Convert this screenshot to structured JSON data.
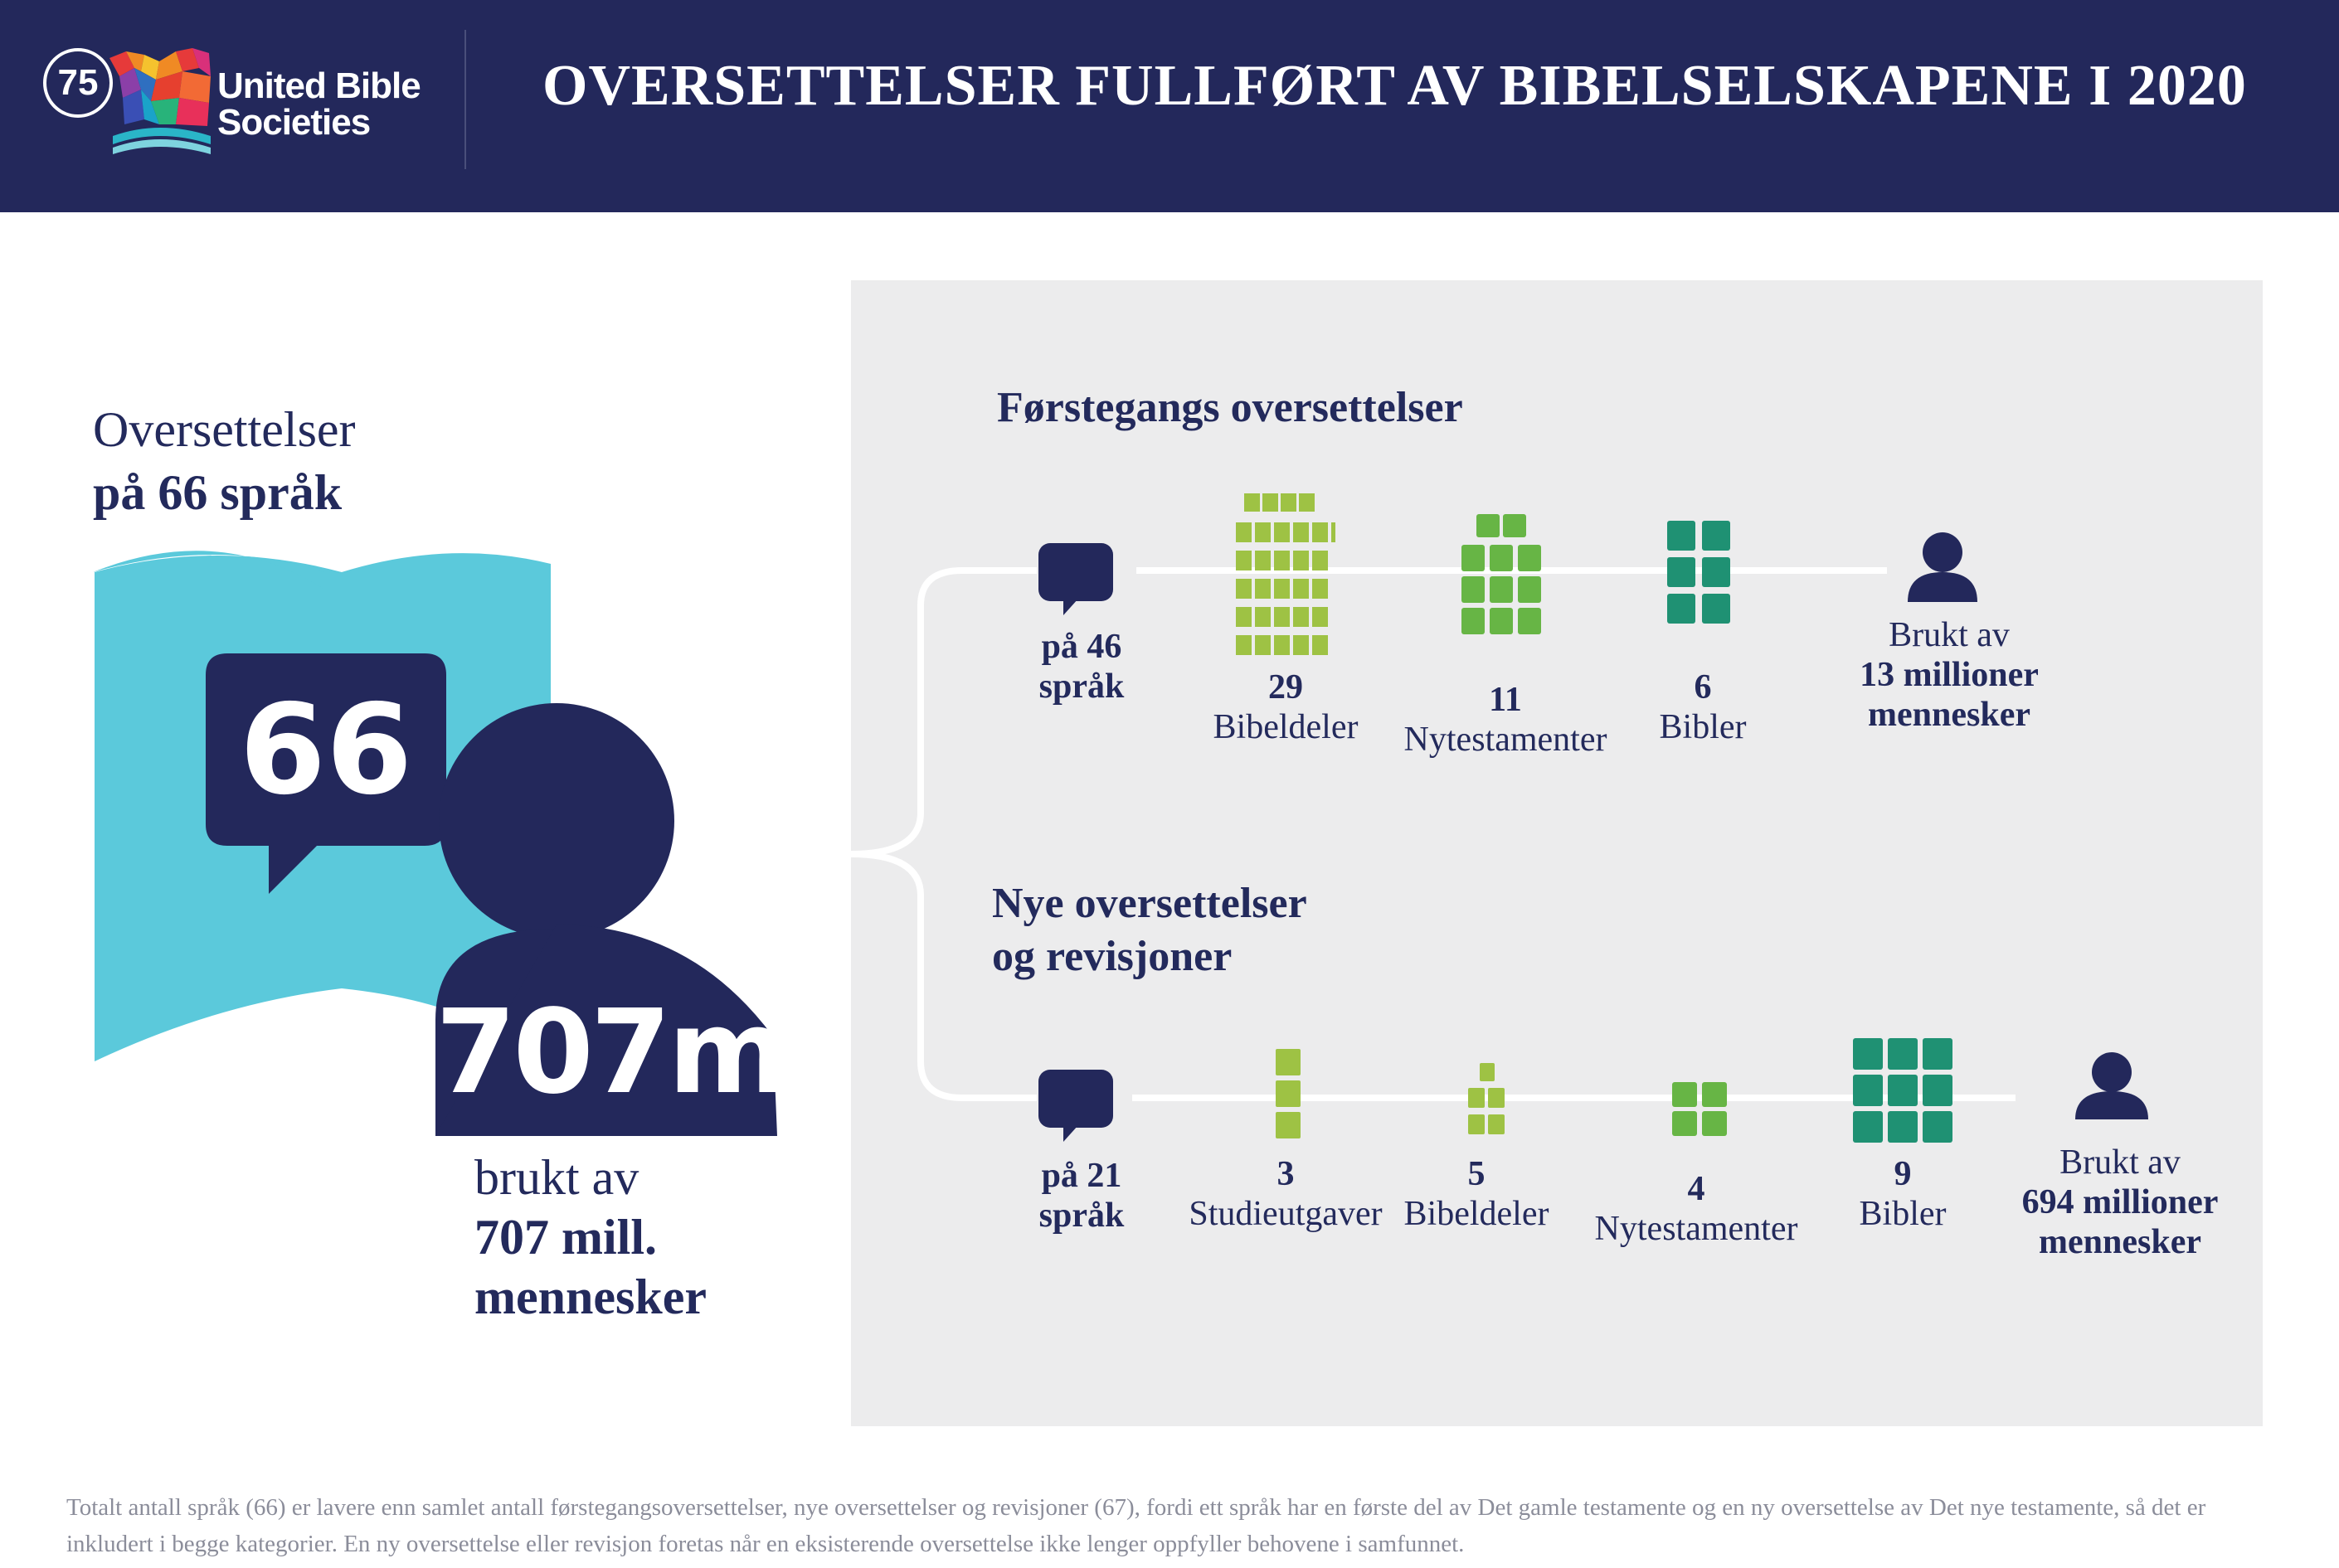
{
  "header": {
    "logo_badge": "75",
    "logo_line1": "United Bible",
    "logo_line2": "Societies",
    "title": "OVERSETTELSER FULLFØRT AV BIBELSELSKAPENE I 2020"
  },
  "summary": {
    "line1": "Oversettelser",
    "line2": "på 66 språk",
    "languages_stat": "66",
    "people_stat": "707m",
    "used_line1": "brukt av",
    "used_line2": "707 mill.",
    "used_line3": "mennesker"
  },
  "first_time": {
    "title": "Førstegangs oversettelser",
    "languages_line1": "på 46",
    "languages_line2": "språk",
    "items": [
      {
        "value": "29",
        "label": "Bibeldeler",
        "icon": "bible-portion-icon"
      },
      {
        "value": "11",
        "label": "Nytestamenter",
        "icon": "new-testament-icon"
      },
      {
        "value": "6",
        "label": "Bibler",
        "icon": "bible-icon"
      }
    ],
    "used_line1": "Brukt av",
    "used_line2": "13 millioner",
    "used_line3": "mennesker"
  },
  "new_revisions": {
    "title_line1": "Nye oversettelser",
    "title_line2": "og revisjoner",
    "languages_line1": "på 21",
    "languages_line2": "språk",
    "items": [
      {
        "value": "3",
        "label": "Studieutgaver",
        "icon": "study-edition-icon"
      },
      {
        "value": "5",
        "label": "Bibeldeler",
        "icon": "bible-portion-icon"
      },
      {
        "value": "4",
        "label": "Nytestamenter",
        "icon": "new-testament-icon"
      },
      {
        "value": "9",
        "label": "Bibler",
        "icon": "bible-icon"
      }
    ],
    "used_line1": "Brukt av",
    "used_line2": "694 millioner",
    "used_line3": "mennesker"
  },
  "footnote": "Totalt antall språk (66) er lavere enn samlet antall førstegangsoversettelser, nye oversettelser og revisjoner (67), fordi ett språk har en første del av Det gamle testamente og en ny oversettelse av Det nye testamente, så det er inkludert i begge kategorier. En ny oversettelse eller revisjon foretas når en eksisterende oversettelse ikke lenger oppfyller behovene i samfunnet.",
  "colors": {
    "navy": "#23285b",
    "cyan": "#5bc9db",
    "lime": "#9ec244",
    "green": "#67b545",
    "teal": "#1f9173",
    "panel": "#ececed"
  }
}
